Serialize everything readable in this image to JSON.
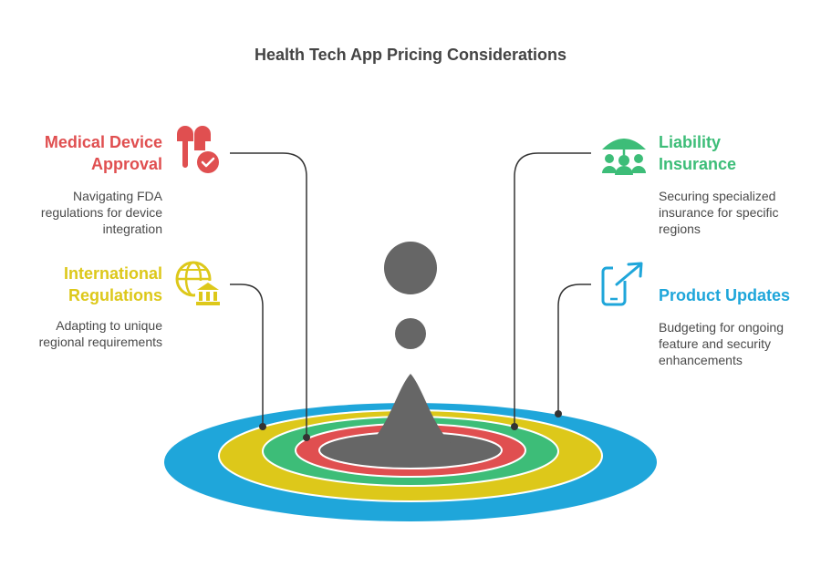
{
  "title": "Health Tech App Pricing Considerations",
  "colors": {
    "red": "#E04F50",
    "yellow": "#DDC81A",
    "green": "#3DBD78",
    "blue": "#1FA6DA",
    "gray": "#666666",
    "line": "#333333"
  },
  "items": [
    {
      "heading_line1": "Medical Device",
      "heading_line2": "Approval",
      "description_line1": "Navigating FDA",
      "description_line2": "regulations for device",
      "description_line3": "integration",
      "icon": "earbuds-check-icon",
      "color": "#E04F50"
    },
    {
      "heading_line1": "International",
      "heading_line2": "Regulations",
      "description_line1": "Adapting to unique",
      "description_line2": "regional requirements",
      "icon": "globe-bank-icon",
      "color": "#DDC81A"
    },
    {
      "heading_line1": "Liability",
      "heading_line2": "Insurance",
      "description_line1": "Securing specialized",
      "description_line2": "insurance for specific",
      "description_line3": "regions",
      "icon": "umbrella-people-icon",
      "color": "#3DBD78"
    },
    {
      "heading_line1": "Product Updates",
      "description_line1": "Budgeting for ongoing",
      "description_line2": "feature and security",
      "description_line3": "enhancements",
      "icon": "phone-arrow-icon",
      "color": "#1FA6DA"
    }
  ]
}
